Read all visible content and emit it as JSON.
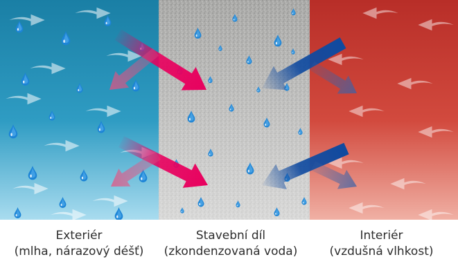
{
  "zones": [
    {
      "name": "Exteriér",
      "detail": "(mlha, nárazový déšť)",
      "color": "#2a93b8"
    },
    {
      "name": "Stavební díl",
      "detail": "(zkondenzovaná voda)",
      "color": "#a9a9a7"
    },
    {
      "name": "Interiér",
      "detail": "(vzdušná vlhkost)",
      "color": "#c8372e"
    }
  ],
  "colors": {
    "exterior_dark": "#1a7fa5",
    "exterior_light": "#a9dcef",
    "interior_dark": "#b82e28",
    "interior_light": "#f0b0a4",
    "arrow_magenta": "#e8005e",
    "arrow_blue": "#0f4aa0",
    "drop": "#1c84d6"
  },
  "icons": [
    "water-drop-icon",
    "wind-arrow-icon",
    "moisture-flow-arrow-icon"
  ]
}
